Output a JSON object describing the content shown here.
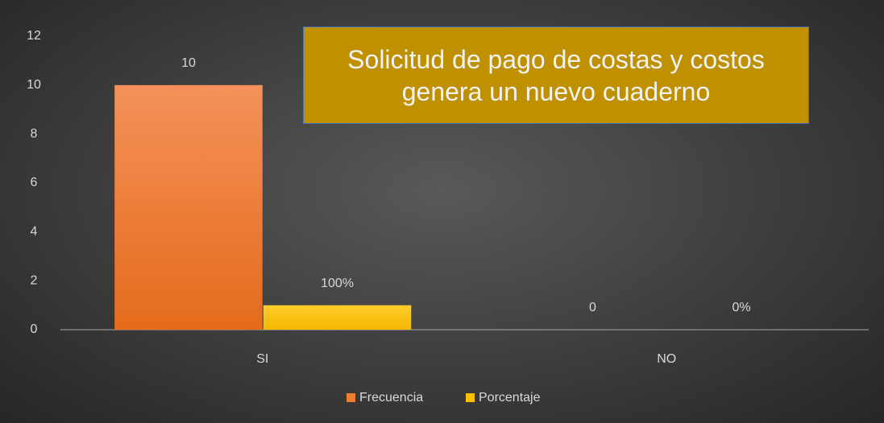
{
  "chart_data": {
    "type": "bar",
    "title": "Solicitud de pago de costas y costos genera un nuevo cuaderno",
    "categories": [
      "SI",
      "NO"
    ],
    "series": [
      {
        "name": "Frecuencia",
        "color": "#ed7d31",
        "values": [
          10,
          0
        ],
        "value_labels": [
          "10",
          "0"
        ]
      },
      {
        "name": "Porcentaje",
        "color": "#ffc000",
        "values": [
          1,
          0
        ],
        "value_labels": [
          "100%",
          "0%"
        ]
      }
    ],
    "ylim": [
      0,
      12
    ],
    "yticks": [
      0,
      2,
      4,
      6,
      8,
      10,
      12
    ],
    "grid": false,
    "legend": "bottom"
  }
}
